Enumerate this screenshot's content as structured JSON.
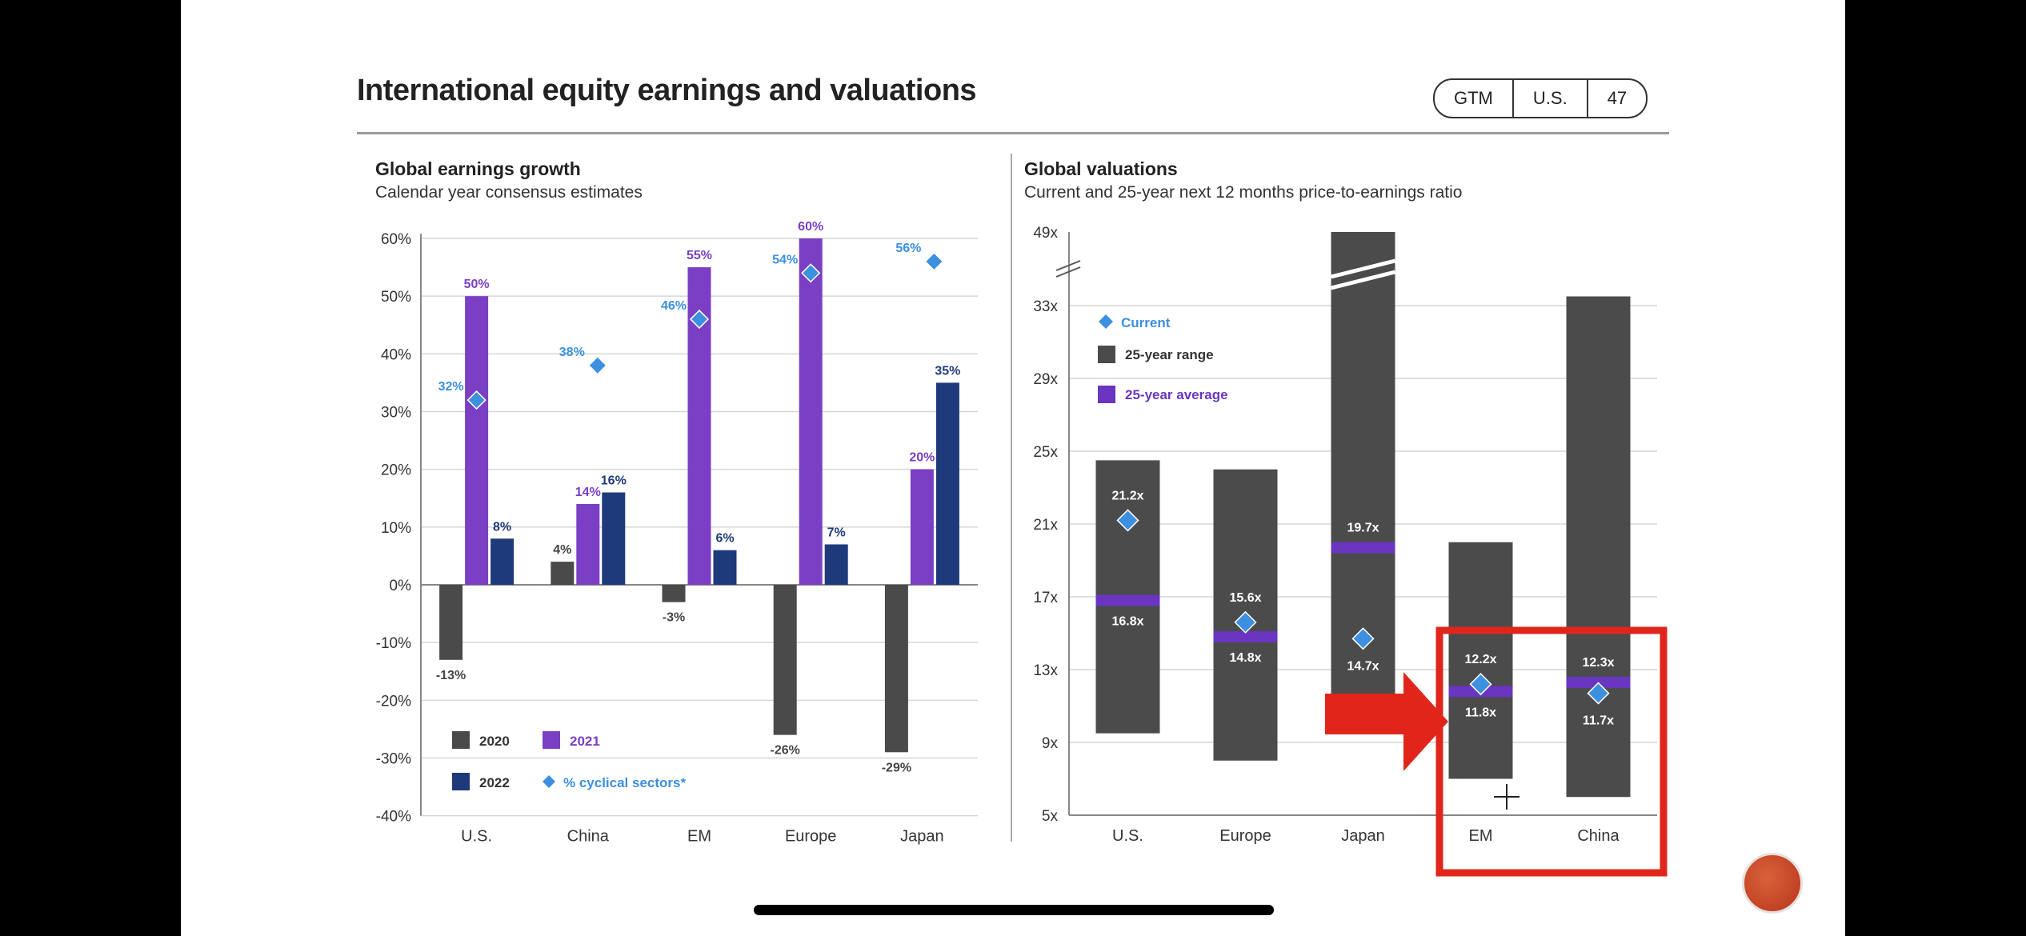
{
  "header": {
    "title": "International equity earnings and valuations",
    "badge": [
      "GTM",
      "U.S.",
      "47"
    ]
  },
  "left_panel": {
    "title": "Global earnings growth",
    "subtitle": "Calendar year consensus estimates"
  },
  "right_panel": {
    "title": "Global valuations",
    "subtitle": "Current and 25-year next 12 months price-to-earnings ratio"
  },
  "colors": {
    "series_2020": "#4a4a4a",
    "series_2021": "#7a3fc4",
    "series_2022": "#1f3a7a",
    "current_marker": "#3d8fe0",
    "range_bar": "#4b4b4b",
    "average_line": "#6a35c0",
    "highlight_box": "#e0261b"
  },
  "chart_data": [
    {
      "type": "bar",
      "title": "Global earnings growth",
      "subtitle": "Calendar year consensus estimates",
      "categories": [
        "U.S.",
        "China",
        "EM",
        "Europe",
        "Japan"
      ],
      "ylim": [
        -40,
        60
      ],
      "yticks": [
        "60%",
        "50%",
        "40%",
        "30%",
        "20%",
        "10%",
        "0%",
        "-10%",
        "-20%",
        "-30%",
        "-40%"
      ],
      "series": [
        {
          "name": "2020",
          "values": [
            -13,
            4,
            -3,
            -26,
            -29
          ],
          "labels": [
            "-13%",
            "4%",
            "-3%",
            "-26%",
            "-29%"
          ]
        },
        {
          "name": "2021",
          "values": [
            50,
            14,
            55,
            60,
            20
          ],
          "labels": [
            "50%",
            "14%",
            "55%",
            "60%",
            "20%"
          ]
        },
        {
          "name": "2022",
          "values": [
            8,
            16,
            6,
            7,
            35
          ],
          "labels": [
            "8%",
            "16%",
            "6%",
            "7%",
            "35%"
          ]
        },
        {
          "name": "% cyclical sectors*",
          "values": [
            32,
            38,
            46,
            54,
            56
          ],
          "labels": [
            "32%",
            "38%",
            "46%",
            "54%",
            "56%"
          ],
          "marker": "diamond"
        }
      ],
      "legend": [
        "2020",
        "2021",
        "2022",
        "% cyclical sectors*"
      ],
      "grid": true
    },
    {
      "type": "bar",
      "title": "Global valuations",
      "subtitle": "Current and 25-year next 12 months price-to-earnings ratio",
      "categories": [
        "U.S.",
        "Europe",
        "Japan",
        "EM",
        "China"
      ],
      "ylim": [
        5,
        49
      ],
      "yticks": [
        "49x",
        "33x",
        "29x",
        "25x",
        "21x",
        "17x",
        "13x",
        "9x",
        "5x"
      ],
      "axis_break": "between 33x and 49x",
      "series": [
        {
          "name": "25-year range",
          "low": [
            9.5,
            8.0,
            11.5,
            7.0,
            6.0
          ],
          "high": [
            24.5,
            24.0,
            49,
            20.0,
            35.0
          ]
        },
        {
          "name": "25-year average",
          "values": [
            16.8,
            14.8,
            19.7,
            11.8,
            12.3
          ],
          "labels": [
            "16.8x",
            "14.8x",
            "19.7x",
            "11.8x",
            "12.3x"
          ]
        },
        {
          "name": "Current",
          "values": [
            21.2,
            15.6,
            14.7,
            12.2,
            11.7
          ],
          "labels": [
            "21.2x",
            "15.6x",
            "14.7x",
            "12.2x",
            "11.7x"
          ],
          "marker": "diamond"
        }
      ],
      "legend": [
        "Current",
        "25-year range",
        "25-year average"
      ],
      "highlight": [
        "EM",
        "China"
      ],
      "grid": true
    }
  ]
}
